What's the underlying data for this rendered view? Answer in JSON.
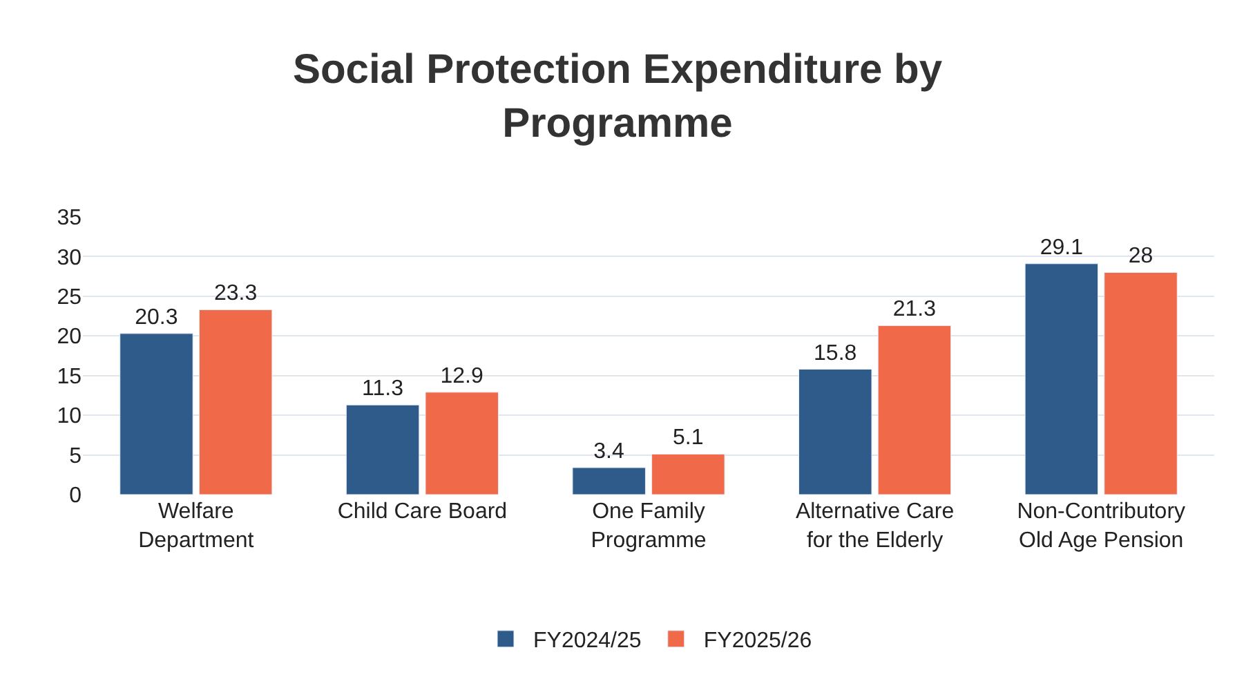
{
  "chart_data": {
    "type": "bar",
    "title": "Social Protection Expenditure by Programme",
    "categories": [
      "Welfare Department",
      "Child Care Board",
      "One Family Programme",
      "Alternative Care for the Elderly",
      "Non-Contributory Old Age Pension"
    ],
    "series": [
      {
        "name": "FY2024/25",
        "color": "#2e5b8a",
        "values": [
          20.3,
          11.3,
          3.4,
          15.8,
          29.1
        ]
      },
      {
        "name": "FY2025/26",
        "color": "#f06a4a",
        "values": [
          23.3,
          12.9,
          5.1,
          21.3,
          28
        ]
      }
    ],
    "ylim": [
      0,
      35
    ],
    "yticks": [
      0,
      5,
      10,
      15,
      20,
      25,
      30,
      35
    ],
    "grid": "y",
    "legend": "bottom",
    "data_labels": true
  }
}
